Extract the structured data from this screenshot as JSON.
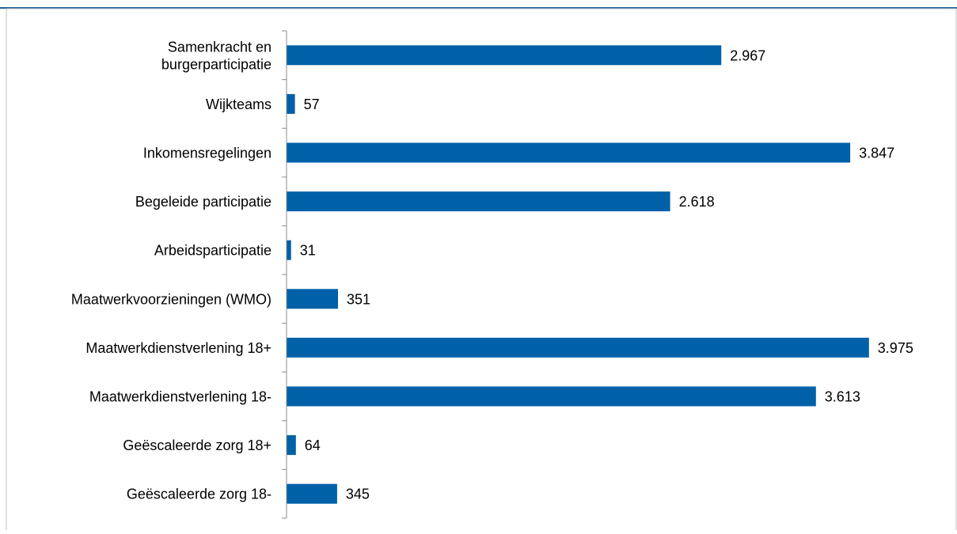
{
  "colors": {
    "bar": "#0060a8",
    "top_rule": "#1f5f9a",
    "frame": "#bfbfbf",
    "axis": "#8c8c8c",
    "text": "#000000"
  },
  "chart_data": {
    "type": "bar",
    "orientation": "horizontal",
    "title": "",
    "xlabel": "",
    "ylabel": "",
    "xlim": [
      0,
      4200
    ],
    "grid": false,
    "legend": "none",
    "categories": [
      "Samenkracht en\nburgerparticipatie",
      "Wijkteams",
      "Inkomensregelingen",
      "Begeleide participatie",
      "Arbeidsparticipatie",
      "Maatwerkvoorzieningen (WMO)",
      "Maatwerkdienstverlening 18+",
      "Maatwerkdienstverlening 18-",
      "Geëscaleerde zorg 18+",
      "Geëscaleerde zorg 18-"
    ],
    "values": [
      2967,
      57,
      3847,
      2618,
      31,
      351,
      3975,
      3613,
      64,
      345
    ],
    "value_labels": [
      "2.967",
      "57",
      "3.847",
      "2.618",
      "31",
      "351",
      "3.975",
      "3.613",
      "64",
      "345"
    ]
  }
}
